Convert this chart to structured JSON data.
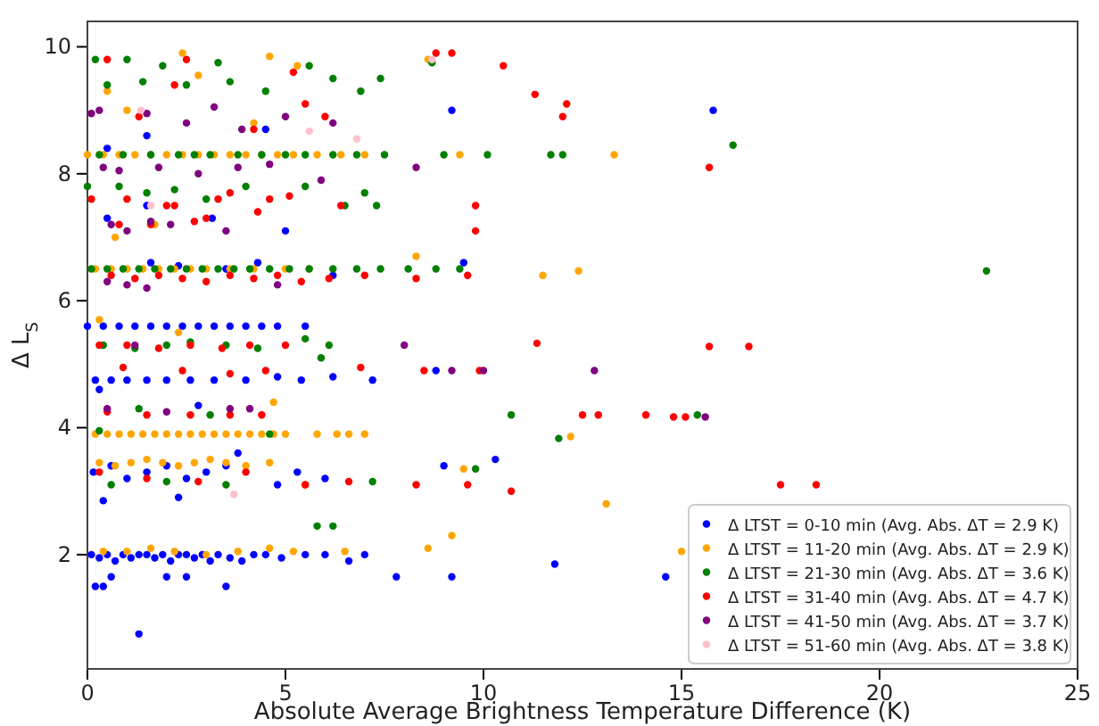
{
  "chart_data": {
    "type": "scatter",
    "xlabel": "Absolute Average Brightness Temperature Difference (K)",
    "ylabel": "Δ L$_{S}$",
    "xlim": [
      0,
      25
    ],
    "ylim": [
      0.2,
      10.4
    ],
    "xticks": [
      0,
      5,
      10,
      15,
      20,
      25
    ],
    "yticks": [
      2,
      4,
      6,
      8,
      10
    ],
    "marker": "circle",
    "legend": "bottom right",
    "series": [
      {
        "name": "Δ LTST = 0-10 min (Avg. Abs. ΔT = 2.9 K)",
        "color": "#0000ff",
        "x": [
          0.1,
          0.3,
          0.5,
          0.7,
          0.9,
          1.1,
          1.3,
          1.5,
          1.7,
          1.9,
          2.1,
          2.3,
          2.5,
          2.7,
          2.9,
          3.1,
          3.3,
          3.6,
          3.9,
          4.2,
          4.5,
          4.9,
          5.5,
          6.0,
          6.6,
          7.0,
          0.2,
          0.4,
          0.6,
          1.3,
          2.0,
          2.5,
          3.5,
          7.8,
          9.2,
          11.8,
          14.6,
          0.15,
          0.6,
          1.0,
          1.5,
          2.0,
          2.5,
          3.0,
          3.5,
          0.4,
          2.3,
          4.8,
          5.3,
          6.0,
          9.0,
          10.3,
          3.8,
          0.2,
          0.6,
          1.0,
          1.5,
          2.0,
          2.6,
          3.2,
          4.0,
          4.8,
          5.4,
          6.2,
          7.2,
          8.8,
          0.3,
          2.8,
          0.0,
          0.4,
          0.8,
          1.2,
          1.6,
          2.0,
          2.4,
          2.8,
          3.2,
          3.6,
          4.0,
          4.4,
          4.8,
          5.5,
          1.6,
          2.3,
          3.5,
          4.3,
          9.5,
          6.2,
          0.5,
          1.5,
          3.15,
          5.0,
          0.5,
          4.5,
          1.5,
          9.2,
          15.8
        ],
        "values": [
          2,
          1.95,
          2,
          1.9,
          2,
          1.95,
          2,
          2,
          1.95,
          2,
          1.9,
          2,
          2,
          1.95,
          2,
          1.9,
          2,
          1.95,
          1.9,
          2,
          2,
          1.95,
          2,
          2,
          1.9,
          2,
          1.5,
          1.5,
          1.65,
          0.75,
          1.65,
          1.65,
          1.5,
          1.65,
          1.65,
          1.85,
          1.65,
          3.3,
          3.4,
          3.2,
          3.3,
          3.4,
          3.2,
          3.3,
          3.4,
          2.85,
          2.9,
          3.1,
          3.3,
          3.2,
          3.4,
          3.5,
          3.6,
          4.75,
          4.75,
          4.75,
          4.75,
          4.75,
          4.75,
          4.75,
          4.75,
          4.8,
          4.75,
          4.8,
          4.75,
          4.9,
          4.6,
          4.35,
          5.6,
          5.6,
          5.6,
          5.6,
          5.6,
          5.6,
          5.6,
          5.6,
          5.6,
          5.6,
          5.6,
          5.6,
          5.6,
          5.6,
          6.6,
          6.55,
          6.5,
          6.6,
          6.6,
          6.4,
          7.3,
          7.5,
          7.3,
          7.1,
          8.4,
          8.7,
          8.6,
          9.0,
          9.0
        ]
      },
      {
        "name": "Δ LTST = 11-20 min (Avg. Abs. ΔT = 2.9 K)",
        "color": "#ffa500",
        "x": [
          0.0,
          0.4,
          0.8,
          1.2,
          1.6,
          2.0,
          2.4,
          2.8,
          3.2,
          3.6,
          4.0,
          4.4,
          4.8,
          5.2,
          5.8,
          6.4,
          7.0,
          9.4,
          13.3,
          0.2,
          0.6,
          1.0,
          1.4,
          1.8,
          2.2,
          2.6,
          3.0,
          3.6,
          4.2,
          5.0,
          5.6,
          11.5,
          12.4,
          0.2,
          0.5,
          0.8,
          1.1,
          1.4,
          1.7,
          2.0,
          2.3,
          2.6,
          2.9,
          3.2,
          3.5,
          3.8,
          4.1,
          4.4,
          4.7,
          5.0,
          5.8,
          6.3,
          6.6,
          7.0,
          12.2,
          0.3,
          0.7,
          1.1,
          1.5,
          1.9,
          2.3,
          2.7,
          3.1,
          3.5,
          4.0,
          4.6,
          5.5,
          9.5,
          0.4,
          1.0,
          1.6,
          2.2,
          3.0,
          3.8,
          4.6,
          5.2,
          6.5,
          8.6,
          9.2,
          15.0,
          0.5,
          2.4,
          4.6,
          5.3,
          8.6,
          1.0,
          2.8,
          4.2,
          0.7,
          1.7,
          8.3,
          13.1,
          0.3,
          4.7,
          2.3
        ],
        "values": [
          8.3,
          8.3,
          8.3,
          8.3,
          8.3,
          8.3,
          8.3,
          8.3,
          8.3,
          8.3,
          8.3,
          8.3,
          8.3,
          8.3,
          8.3,
          8.3,
          8.3,
          8.3,
          8.3,
          6.5,
          6.5,
          6.5,
          6.5,
          6.5,
          6.5,
          6.5,
          6.5,
          6.5,
          6.5,
          6.5,
          6.5,
          6.4,
          6.47,
          3.9,
          3.9,
          3.9,
          3.9,
          3.9,
          3.9,
          3.9,
          3.9,
          3.9,
          3.9,
          3.9,
          3.9,
          3.9,
          3.9,
          3.9,
          3.9,
          3.9,
          3.9,
          3.9,
          3.9,
          3.9,
          3.86,
          3.45,
          3.4,
          3.45,
          3.5,
          3.45,
          3.4,
          3.45,
          3.5,
          3.45,
          3.4,
          3.45,
          3.1,
          3.35,
          2.05,
          2.05,
          2.1,
          2.05,
          2.0,
          2.05,
          2.1,
          2.05,
          2.05,
          2.1,
          2.3,
          2.05,
          9.3,
          9.9,
          9.85,
          9.7,
          9.8,
          9.0,
          9.55,
          8.8,
          7.0,
          7.2,
          6.7,
          2.8,
          5.7,
          4.4,
          5.5
        ]
      },
      {
        "name": "Δ LTST = 21-30 min (Avg. Abs. ΔT = 3.6 K)",
        "color": "#008000",
        "x": [
          0.2,
          1.0,
          1.9,
          3.3,
          5.6,
          6.2,
          8.7,
          0.5,
          1.4,
          2.5,
          3.6,
          4.5,
          6.9,
          7.4,
          0.3,
          0.9,
          1.6,
          2.3,
          2.7,
          3.1,
          3.8,
          4.4,
          5.0,
          5.5,
          6.2,
          6.8,
          7.5,
          9.0,
          10.1,
          11.7,
          12.0,
          0.0,
          0.8,
          1.5,
          2.2,
          3.0,
          4.0,
          5.5,
          6.5,
          7.0,
          7.3,
          0.1,
          0.5,
          0.9,
          1.3,
          1.7,
          2.1,
          2.5,
          2.9,
          3.3,
          3.7,
          4.1,
          4.6,
          5.1,
          5.6,
          6.2,
          6.8,
          7.4,
          8.1,
          8.8,
          9.4,
          22.7,
          0.4,
          1.2,
          2.0,
          2.6,
          3.5,
          4.3,
          5.5,
          5.9,
          6.1,
          0.3,
          1.3,
          3.1,
          4.6,
          0.6,
          2.0,
          3.5,
          7.2,
          11.9,
          16.3,
          9.8,
          10.7,
          15.4,
          5.8,
          6.2
        ],
        "values": [
          9.8,
          9.8,
          9.7,
          9.75,
          9.7,
          9.5,
          9.75,
          9.4,
          9.45,
          9.4,
          9.45,
          9.3,
          9.3,
          9.5,
          8.3,
          8.3,
          8.3,
          8.3,
          8.3,
          8.3,
          8.3,
          8.3,
          8.3,
          8.3,
          8.3,
          8.3,
          8.3,
          8.3,
          8.3,
          8.3,
          8.3,
          7.8,
          7.8,
          7.7,
          7.75,
          7.6,
          7.8,
          7.8,
          7.5,
          7.7,
          7.5,
          6.5,
          6.5,
          6.5,
          6.5,
          6.5,
          6.5,
          6.5,
          6.5,
          6.5,
          6.5,
          6.5,
          6.5,
          6.5,
          6.5,
          6.5,
          6.5,
          6.5,
          6.5,
          6.5,
          6.5,
          6.47,
          5.3,
          5.25,
          5.3,
          5.35,
          5.3,
          5.25,
          5.4,
          5.1,
          5.3,
          3.95,
          4.3,
          4.2,
          3.9,
          3.1,
          3.15,
          3.1,
          3.15,
          3.83,
          8.45,
          3.35,
          4.2,
          4.2,
          2.45,
          2.45
        ]
      },
      {
        "name": "Δ LTST = 31-40 min (Avg. Abs. ΔT = 4.7 K)",
        "color": "#ff0000",
        "x": [
          0.5,
          1.3,
          2.2,
          2.5,
          4.2,
          5.2,
          5.5,
          6.0,
          8.8,
          9.2,
          10.5,
          11.3,
          12.1,
          12.0,
          15.7,
          0.1,
          1.0,
          1.6,
          2.2,
          2.7,
          3.3,
          3.6,
          4.3,
          5.1,
          6.4,
          9.8,
          0.8,
          2.0,
          3.0,
          4.6,
          9.8,
          0.6,
          1.2,
          1.8,
          2.4,
          3.0,
          3.6,
          4.2,
          4.8,
          5.4,
          6.1,
          7.0,
          8.3,
          9.6,
          0.3,
          1.0,
          1.8,
          2.6,
          3.4,
          4.1,
          5.0,
          0.9,
          2.4,
          3.6,
          4.5,
          6.9,
          8.5,
          9.9,
          11.35,
          15.7,
          16.7,
          0.5,
          1.5,
          2.6,
          3.6,
          4.4,
          12.5,
          12.9,
          14.1,
          14.8,
          15.1,
          0.3,
          1.5,
          2.8,
          4.0,
          5.5,
          6.6,
          8.3,
          9.6,
          10.7,
          17.5,
          18.4
        ],
        "values": [
          9.8,
          8.9,
          9.4,
          9.8,
          8.7,
          9.6,
          9.1,
          8.9,
          9.9,
          9.9,
          9.7,
          9.25,
          9.1,
          8.9,
          8.1,
          7.6,
          7.6,
          7.2,
          7.5,
          7.25,
          7.6,
          7.7,
          7.4,
          7.65,
          7.5,
          7.1,
          7.2,
          7.5,
          7.3,
          7.6,
          7.5,
          6.4,
          6.35,
          6.4,
          6.35,
          6.3,
          6.4,
          6.35,
          6.4,
          6.3,
          6.35,
          6.4,
          6.35,
          6.4,
          5.3,
          5.3,
          5.25,
          5.3,
          5.25,
          5.3,
          5.3,
          4.95,
          4.9,
          4.85,
          4.9,
          4.95,
          4.9,
          4.9,
          5.33,
          5.28,
          5.28,
          4.25,
          4.2,
          4.2,
          4.2,
          4.2,
          4.2,
          4.2,
          4.2,
          4.17,
          4.17,
          3.3,
          3.2,
          3.15,
          3.3,
          3.1,
          3.15,
          3.1,
          3.1,
          3.0,
          3.1,
          3.1
        ]
      },
      {
        "name": "Δ LTST = 41-50 min (Avg. Abs. ΔT = 3.7 K)",
        "color": "#800080",
        "x": [
          0.1,
          0.3,
          1.5,
          2.5,
          3.2,
          3.9,
          5.0,
          6.2,
          8.3,
          0.4,
          0.8,
          1.8,
          2.8,
          3.8,
          4.6,
          5.9,
          0.6,
          1.0,
          1.6,
          2.1,
          3.5,
          0.5,
          1.0,
          1.5,
          4.8,
          9.2,
          10.0,
          12.8,
          15.6,
          0.5,
          2.0,
          3.6,
          4.1,
          1.2,
          8.0
        ],
        "values": [
          8.95,
          9.0,
          8.95,
          8.8,
          9.05,
          8.7,
          8.9,
          8.8,
          8.1,
          8.1,
          8.05,
          8.1,
          8.0,
          8.1,
          8.15,
          7.9,
          7.2,
          7.1,
          7.25,
          7.2,
          7.1,
          6.3,
          6.25,
          6.2,
          6.25,
          4.9,
          4.9,
          4.9,
          4.17,
          4.3,
          4.25,
          4.3,
          4.3,
          5.3,
          5.3
        ]
      },
      {
        "name": "Δ LTST = 51-60 min (Avg. Abs. ΔT = 3.8 K)",
        "color": "#ffc0cb",
        "x": [
          1.35,
          5.6,
          6.8,
          8.7,
          1.6,
          3.7
        ],
        "values": [
          9.0,
          8.67,
          8.55,
          9.8,
          7.5,
          2.95
        ]
      }
    ]
  }
}
